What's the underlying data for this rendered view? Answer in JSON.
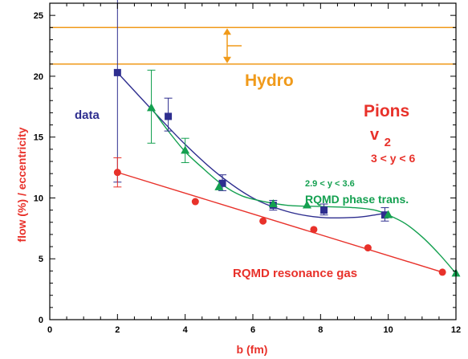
{
  "chart_data": {
    "type": "scatter",
    "xlabel": "b (fm)",
    "ylabel": "flow (%) / eccentricity",
    "xlim": [
      0,
      12
    ],
    "ylim": [
      0,
      26
    ],
    "x_ticks": [
      0,
      2,
      4,
      6,
      8,
      10,
      12
    ],
    "y_ticks": [
      0,
      5,
      10,
      15,
      20,
      25
    ],
    "grid": false,
    "colors": {
      "data": "#2e2e8f",
      "phase": "#14a050",
      "gas": "#e8312a",
      "hydro": "#f09a1a",
      "axis_label": "#e8312a"
    },
    "series": [
      {
        "name": "data",
        "marker": "square",
        "x": [
          2.0,
          3.5,
          5.1,
          6.6,
          8.1,
          9.9
        ],
        "y": [
          20.3,
          16.7,
          11.2,
          9.4,
          9.0,
          8.6
        ],
        "yerr_low": [
          9.0,
          1.2,
          0.6,
          0.4,
          0.4,
          0.5
        ],
        "yerr_high": [
          9.3,
          1.5,
          0.7,
          0.4,
          0.5,
          0.6
        ],
        "fit": [
          [
            2.0,
            20.3
          ],
          [
            3.0,
            17.3
          ],
          [
            4.0,
            14.4
          ],
          [
            5.0,
            11.9
          ],
          [
            6.0,
            10.0
          ],
          [
            7.0,
            8.9
          ],
          [
            8.0,
            8.4
          ],
          [
            9.0,
            8.4
          ],
          [
            9.6,
            8.6
          ],
          [
            10.0,
            8.8
          ]
        ]
      },
      {
        "name": "RQMD phase trans.",
        "range_label": "2.9 < y < 3.6",
        "marker": "triangle",
        "x": [
          3.0,
          4.0,
          5.0,
          6.6,
          7.6,
          10.0,
          12.0
        ],
        "y": [
          17.4,
          13.9,
          10.9,
          9.5,
          9.4,
          8.6,
          3.8
        ],
        "yerr_low": [
          2.9,
          1.0,
          0,
          0,
          0,
          0,
          0
        ],
        "yerr_high": [
          3.1,
          1.0,
          0,
          0,
          0,
          0,
          0
        ],
        "fit": [
          [
            3.0,
            17.4
          ],
          [
            3.5,
            15.5
          ],
          [
            4.0,
            13.8
          ],
          [
            4.5,
            12.5
          ],
          [
            5.0,
            11.3
          ],
          [
            5.5,
            10.4
          ],
          [
            6.0,
            9.9
          ],
          [
            7.0,
            9.4
          ],
          [
            8.0,
            9.3
          ],
          [
            9.0,
            9.2
          ],
          [
            9.6,
            9.0
          ],
          [
            10.0,
            8.6
          ],
          [
            10.5,
            7.9
          ],
          [
            11.0,
            6.8
          ],
          [
            11.5,
            5.4
          ],
          [
            12.0,
            3.8
          ]
        ]
      },
      {
        "name": "RQMD resonance gas",
        "marker": "circle",
        "x": [
          2.0,
          4.3,
          6.3,
          7.8,
          9.4,
          11.6
        ],
        "y": [
          12.1,
          9.7,
          8.1,
          7.4,
          5.9,
          3.9
        ],
        "yerr_low": [
          1.2,
          0,
          0,
          0,
          0,
          0
        ],
        "yerr_high": [
          1.2,
          0,
          0,
          0,
          0,
          0
        ],
        "fit": [
          [
            2.0,
            12.1
          ],
          [
            11.6,
            3.9
          ]
        ]
      }
    ],
    "hydro": {
      "label": "Hydro",
      "band": [
        21.0,
        24.0
      ]
    },
    "annotations": {
      "pions": "Pions",
      "v2_base": "v",
      "v2_sub": "2",
      "rapidity": "3 < y < 6"
    }
  }
}
